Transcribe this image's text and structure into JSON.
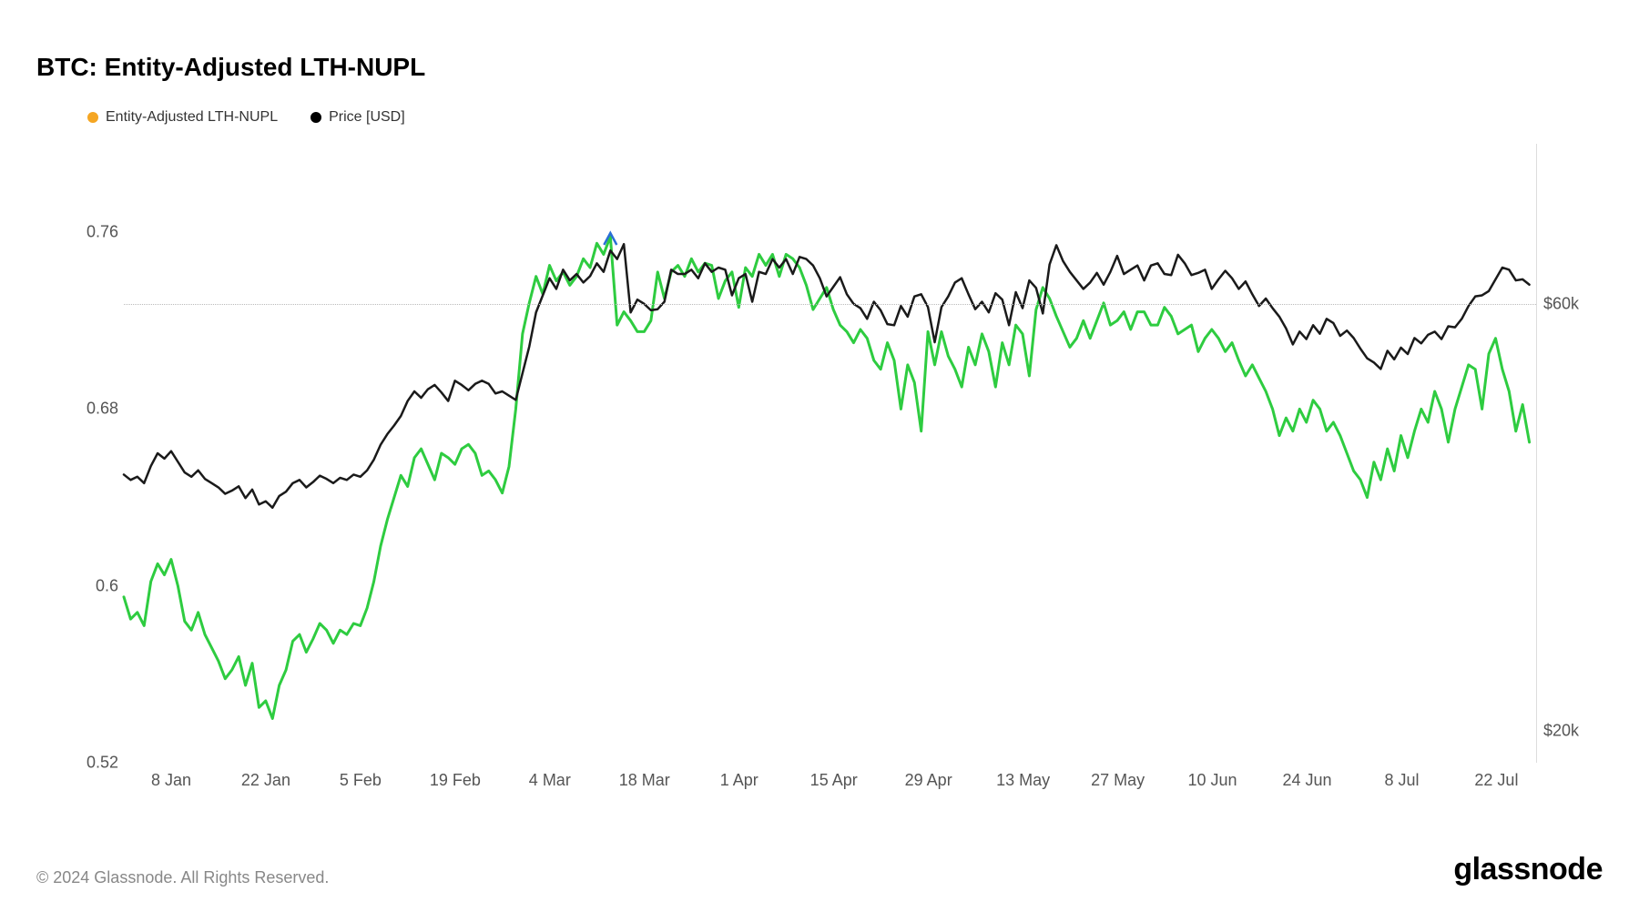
{
  "title": "BTC: Entity-Adjusted LTH-NUPL",
  "legend": [
    {
      "label": "Entity-Adjusted LTH-NUPL",
      "color": "#f5a623"
    },
    {
      "label": "Price [USD]",
      "color": "#000000"
    }
  ],
  "chart": {
    "type": "line",
    "background_color": "#ffffff",
    "grid_color": "#bbbbbb",
    "left_axis": {
      "min": 0.52,
      "max": 0.8,
      "ticks": [
        0.52,
        0.6,
        0.68,
        0.76
      ],
      "tick_labels": [
        "0.52",
        "0.6",
        "0.68",
        "0.76"
      ]
    },
    "right_axis": {
      "min": 17000,
      "max": 75000,
      "ticks": [
        20000,
        60000
      ],
      "tick_labels": [
        "$20k",
        "$60k"
      ],
      "reference_line": 60000
    },
    "x_axis": {
      "min_index": 0,
      "max_index": 209,
      "tick_indices": [
        7,
        21,
        35,
        49,
        63,
        77,
        91,
        105,
        119,
        133,
        147,
        161,
        175,
        189,
        203
      ],
      "tick_labels": [
        "8 Jan",
        "22 Jan",
        "5 Feb",
        "19 Feb",
        "4 Mar",
        "18 Mar",
        "1 Apr",
        "15 Apr",
        "29 Apr",
        "13 May",
        "27 May",
        "10 Jun",
        "24 Jun",
        "8 Jul",
        "22 Jul"
      ]
    },
    "series": [
      {
        "name": "nupl",
        "color": "#2ecc40",
        "width": 3,
        "axis": "left",
        "data": [
          0.595,
          0.585,
          0.588,
          0.582,
          0.602,
          0.61,
          0.605,
          0.612,
          0.6,
          0.584,
          0.58,
          0.588,
          0.578,
          0.572,
          0.566,
          0.558,
          0.562,
          0.568,
          0.555,
          0.565,
          0.545,
          0.548,
          0.54,
          0.555,
          0.562,
          0.575,
          0.578,
          0.57,
          0.576,
          0.583,
          0.58,
          0.574,
          0.58,
          0.578,
          0.583,
          0.582,
          0.59,
          0.602,
          0.618,
          0.63,
          0.64,
          0.65,
          0.645,
          0.658,
          0.662,
          0.655,
          0.648,
          0.66,
          0.658,
          0.655,
          0.662,
          0.664,
          0.66,
          0.65,
          0.652,
          0.648,
          0.642,
          0.654,
          0.68,
          0.714,
          0.728,
          0.74,
          0.732,
          0.745,
          0.738,
          0.742,
          0.736,
          0.74,
          0.748,
          0.744,
          0.755,
          0.75,
          0.758,
          0.718,
          0.724,
          0.72,
          0.715,
          0.715,
          0.72,
          0.742,
          0.73,
          0.742,
          0.745,
          0.74,
          0.748,
          0.742,
          0.746,
          0.745,
          0.73,
          0.738,
          0.742,
          0.726,
          0.744,
          0.74,
          0.75,
          0.745,
          0.75,
          0.74,
          0.75,
          0.748,
          0.744,
          0.736,
          0.725,
          0.73,
          0.735,
          0.725,
          0.718,
          0.715,
          0.71,
          0.716,
          0.712,
          0.702,
          0.698,
          0.71,
          0.702,
          0.68,
          0.7,
          0.692,
          0.67,
          0.715,
          0.7,
          0.715,
          0.704,
          0.698,
          0.69,
          0.708,
          0.7,
          0.714,
          0.706,
          0.69,
          0.71,
          0.7,
          0.718,
          0.714,
          0.695,
          0.725,
          0.735,
          0.73,
          0.722,
          0.715,
          0.708,
          0.712,
          0.72,
          0.712,
          0.72,
          0.728,
          0.718,
          0.72,
          0.724,
          0.716,
          0.724,
          0.724,
          0.718,
          0.718,
          0.726,
          0.722,
          0.714,
          0.716,
          0.718,
          0.706,
          0.712,
          0.716,
          0.712,
          0.706,
          0.71,
          0.702,
          0.695,
          0.7,
          0.694,
          0.688,
          0.68,
          0.668,
          0.676,
          0.67,
          0.68,
          0.674,
          0.684,
          0.68,
          0.67,
          0.674,
          0.668,
          0.66,
          0.652,
          0.648,
          0.64,
          0.656,
          0.648,
          0.662,
          0.652,
          0.668,
          0.658,
          0.67,
          0.68,
          0.674,
          0.688,
          0.68,
          0.665,
          0.68,
          0.69,
          0.7,
          0.698,
          0.68,
          0.705,
          0.712,
          0.698,
          0.688,
          0.67,
          0.682,
          0.665
        ]
      },
      {
        "name": "price",
        "color": "#1a1a1a",
        "width": 2.5,
        "axis": "right",
        "data": [
          44000,
          43500,
          43800,
          43200,
          44800,
          46000,
          45500,
          46200,
          45200,
          44200,
          43800,
          44400,
          43600,
          43200,
          42800,
          42200,
          42500,
          42900,
          41800,
          42600,
          41200,
          41500,
          40900,
          42000,
          42400,
          43200,
          43500,
          42800,
          43300,
          43900,
          43600,
          43200,
          43700,
          43500,
          44000,
          43800,
          44400,
          45400,
          46800,
          47800,
          48600,
          49500,
          50900,
          51800,
          51200,
          52000,
          52400,
          51700,
          50900,
          52800,
          52400,
          51900,
          52500,
          52800,
          52500,
          51600,
          51800,
          51400,
          51000,
          53500,
          56000,
          59200,
          60800,
          62400,
          61400,
          63200,
          62200,
          62800,
          62000,
          62600,
          63800,
          63000,
          65000,
          64200,
          65600,
          59200,
          60400,
          60000,
          59400,
          59500,
          60200,
          63200,
          62800,
          62800,
          63200,
          62400,
          63800,
          63000,
          63400,
          63200,
          60800,
          62400,
          62800,
          60200,
          63000,
          62800,
          64200,
          63400,
          64200,
          62800,
          64400,
          64200,
          63600,
          62400,
          60700,
          61600,
          62500,
          60900,
          60000,
          59600,
          58600,
          60200,
          59400,
          58100,
          58000,
          59800,
          58800,
          60700,
          60900,
          59700,
          56400,
          59700,
          60700,
          62000,
          62400,
          60900,
          59500,
          60200,
          59200,
          61000,
          60400,
          58000,
          61100,
          59600,
          62200,
          61500,
          59100,
          63700,
          65500,
          64000,
          63000,
          62200,
          61400,
          62000,
          62900,
          61800,
          63000,
          64500,
          62800,
          63200,
          63600,
          62200,
          63600,
          63800,
          62800,
          62700,
          64600,
          63800,
          62700,
          62900,
          63200,
          61400,
          62300,
          63100,
          62400,
          61400,
          62100,
          60900,
          59800,
          60500,
          59600,
          58800,
          57700,
          56200,
          57400,
          56700,
          58000,
          57200,
          58600,
          58200,
          57000,
          57500,
          56800,
          55800,
          54900,
          54500,
          53900,
          55600,
          54800,
          55900,
          55300,
          56800,
          56300,
          57100,
          57400,
          56700,
          57900,
          57800,
          58600,
          59800,
          60700,
          60800,
          61200,
          62300,
          63400,
          63200,
          62200,
          62300,
          61800
        ]
      }
    ],
    "peak_marker": {
      "index": 72,
      "value": 0.758,
      "color": "#2a6fd6"
    }
  },
  "footer": {
    "copyright": "© 2024 Glassnode. All Rights Reserved.",
    "brand": "glassnode"
  }
}
